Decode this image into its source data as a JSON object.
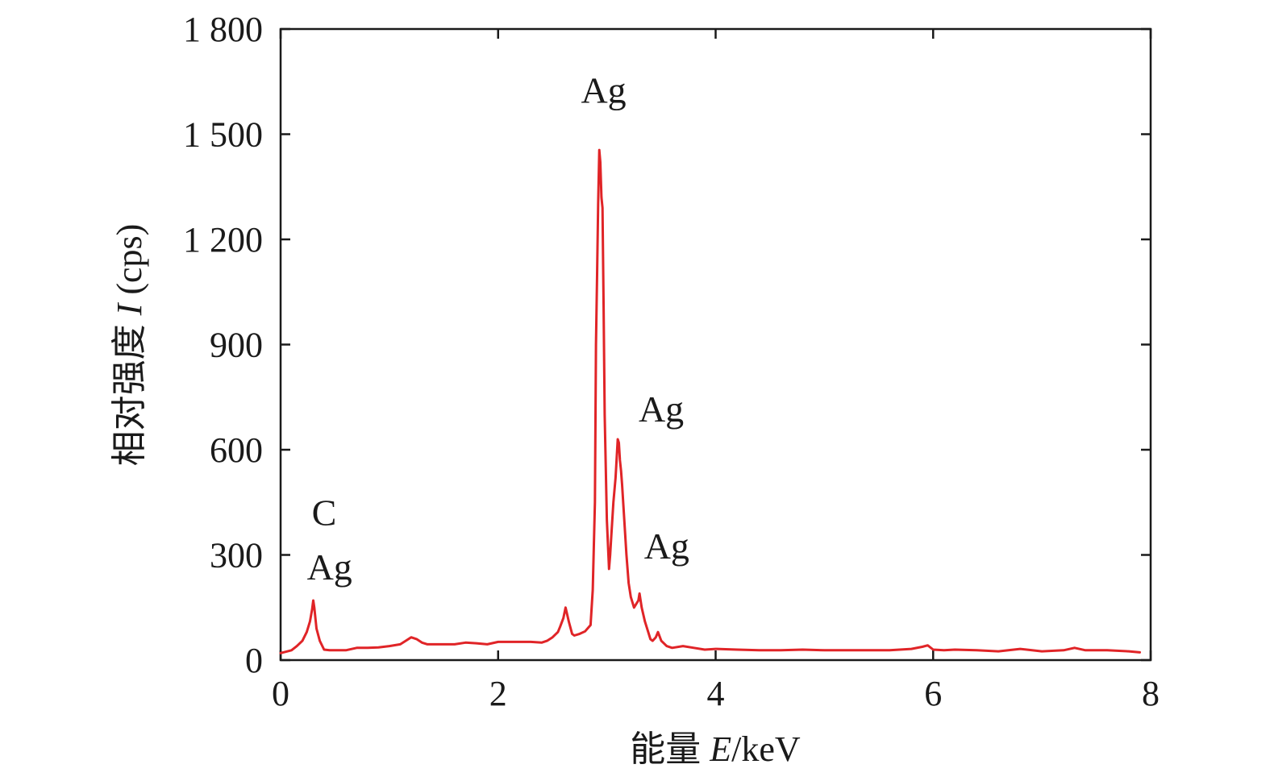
{
  "chart_data": {
    "type": "line",
    "title": "",
    "xlabel": "能量 E/keV",
    "xlabel_parts": {
      "text": "能量 ",
      "symbol": "E",
      "unit": "/keV"
    },
    "ylabel": "相对强度 I (cps)",
    "ylabel_parts": {
      "text": "相对强度 ",
      "symbol": "I",
      "unit": " (cps)"
    },
    "xlim": [
      0,
      8
    ],
    "ylim": [
      0,
      1800
    ],
    "xticks": [
      0,
      2,
      4,
      6,
      8
    ],
    "xtick_labels": [
      "0",
      "2",
      "4",
      "6",
      "8"
    ],
    "yticks": [
      0,
      300,
      600,
      900,
      1200,
      1500,
      1800
    ],
    "ytick_labels": [
      "0",
      "300",
      "600",
      "900",
      "1 200",
      "1 500",
      "1 800"
    ],
    "grid": false,
    "series_color": "#e02427",
    "series": [
      {
        "x": [
          0.0,
          0.1,
          0.15,
          0.2,
          0.24,
          0.27,
          0.29,
          0.3,
          0.31,
          0.33,
          0.36,
          0.4,
          0.45,
          0.5,
          0.6,
          0.7,
          0.8,
          0.9,
          1.0,
          1.1,
          1.15,
          1.2,
          1.25,
          1.3,
          1.35,
          1.4,
          1.5,
          1.6,
          1.7,
          1.8,
          1.9,
          2.0,
          2.1,
          2.2,
          2.3,
          2.4,
          2.45,
          2.5,
          2.55,
          2.57,
          2.6,
          2.62,
          2.65,
          2.68,
          2.7,
          2.75,
          2.8,
          2.85,
          2.87,
          2.89,
          2.9,
          2.91,
          2.92,
          2.93,
          2.94,
          2.95,
          2.96,
          2.97,
          2.98,
          3.0,
          3.02,
          3.03,
          3.04,
          3.06,
          3.08,
          3.1,
          3.11,
          3.12,
          3.13,
          3.14,
          3.16,
          3.18,
          3.2,
          3.22,
          3.25,
          3.27,
          3.29,
          3.3,
          3.32,
          3.35,
          3.38,
          3.4,
          3.42,
          3.45,
          3.47,
          3.5,
          3.55,
          3.6,
          3.7,
          3.8,
          3.9,
          4.0,
          4.2,
          4.4,
          4.6,
          4.8,
          5.0,
          5.2,
          5.4,
          5.6,
          5.8,
          5.9,
          5.95,
          6.0,
          6.1,
          6.2,
          6.4,
          6.6,
          6.8,
          7.0,
          7.2,
          7.3,
          7.4,
          7.6,
          7.8,
          7.9
        ],
        "y": [
          20,
          28,
          40,
          55,
          80,
          110,
          145,
          170,
          150,
          90,
          55,
          30,
          28,
          28,
          28,
          35,
          35,
          36,
          40,
          45,
          55,
          65,
          60,
          50,
          45,
          45,
          45,
          45,
          50,
          48,
          45,
          52,
          52,
          52,
          52,
          50,
          55,
          65,
          80,
          95,
          120,
          150,
          110,
          75,
          70,
          75,
          82,
          100,
          200,
          450,
          900,
          1100,
          1300,
          1455,
          1420,
          1320,
          1290,
          1000,
          700,
          400,
          260,
          300,
          350,
          450,
          520,
          630,
          620,
          570,
          540,
          500,
          400,
          300,
          220,
          180,
          150,
          160,
          170,
          190,
          150,
          110,
          80,
          60,
          55,
          65,
          80,
          55,
          40,
          35,
          40,
          35,
          30,
          32,
          30,
          28,
          28,
          30,
          28,
          28,
          28,
          28,
          32,
          38,
          42,
          30,
          28,
          30,
          28,
          25,
          32,
          25,
          28,
          35,
          28,
          28,
          25,
          22
        ]
      }
    ],
    "annotations": [
      {
        "text": "Ag",
        "x": 2.97,
        "y": 1590
      },
      {
        "text": "Ag",
        "x": 3.5,
        "y": 680
      },
      {
        "text": "Ag",
        "x": 3.55,
        "y": 290
      },
      {
        "text": "C",
        "x": 0.4,
        "y": 385
      },
      {
        "text": "Ag",
        "x": 0.45,
        "y": 230
      }
    ]
  }
}
